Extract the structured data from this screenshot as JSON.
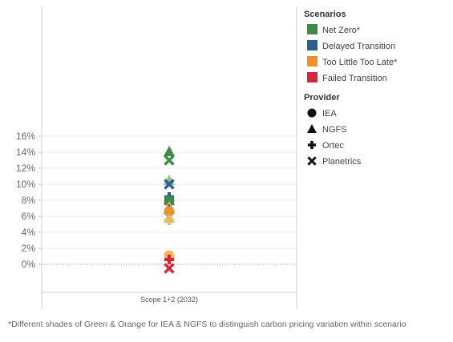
{
  "footnote": "*Different shades of Green & Orange for IEA & NGFS to distinguish carbon pricing variation within scenario",
  "chart_data": {
    "type": "scatter",
    "categories": [
      "Scope 1+2 (2032)"
    ],
    "ylim": [
      -0.03,
      0.16
    ],
    "yticks": [
      {
        "value": 0.16,
        "label": "16%"
      },
      {
        "value": 0.14,
        "label": "14%"
      },
      {
        "value": 0.12,
        "label": "12%"
      },
      {
        "value": 0.1,
        "label": "10%"
      },
      {
        "value": 0.08,
        "label": "8%"
      },
      {
        "value": 0.06,
        "label": "6%"
      },
      {
        "value": 0.04,
        "label": "4%"
      },
      {
        "value": 0.02,
        "label": "2%"
      },
      {
        "value": 0.0,
        "label": "0%"
      }
    ],
    "grid": true,
    "zero_line": "dotted",
    "legend_position": "right",
    "legends": [
      {
        "title": "Scenarios",
        "items": [
          {
            "label": "Net Zero*",
            "color": "#3d8b4a"
          },
          {
            "label": "Delayed Transition",
            "color": "#2f5d8c"
          },
          {
            "label": "Too Little Too Late*",
            "color": "#f28e2b"
          },
          {
            "label": "Failed Transition",
            "color": "#d6283a"
          }
        ]
      },
      {
        "title": "Provider",
        "items": [
          {
            "label": "IEA",
            "shape": "circle"
          },
          {
            "label": "NGFS",
            "shape": "triangle"
          },
          {
            "label": "Ortec",
            "shape": "plus"
          },
          {
            "label": "Planetrics",
            "shape": "cross"
          }
        ]
      }
    ],
    "points": [
      {
        "scenario": "Net Zero*",
        "provider": "NGFS",
        "value": 0.141,
        "color": "#3d8b4a"
      },
      {
        "scenario": "Net Zero*",
        "provider": "Planetrics",
        "value": 0.13,
        "color": "#3d8b4a"
      },
      {
        "scenario": "Net Zero*",
        "provider": "NGFS",
        "value": 0.105,
        "color": "#8cc57b"
      },
      {
        "scenario": "Delayed Transition",
        "provider": "Planetrics",
        "value": 0.1,
        "color": "#2f5d8c"
      },
      {
        "scenario": "Delayed Transition",
        "provider": "Ortec",
        "value": 0.084,
        "color": "#2f5d8c"
      },
      {
        "scenario": "Net Zero*",
        "provider": "NGFS",
        "value": 0.08,
        "color": "#3d8b4a"
      },
      {
        "scenario": "Net Zero*",
        "provider": "IEA",
        "value": 0.079,
        "color": "#3d8b4a"
      },
      {
        "scenario": "Too Little Too Late*",
        "provider": "NGFS",
        "value": 0.072,
        "color": "#f8b862"
      },
      {
        "scenario": "Delayed Transition",
        "provider": "NGFS",
        "value": 0.069,
        "color": "#2f5d8c"
      },
      {
        "scenario": "Too Little Too Late*",
        "provider": "IEA",
        "value": 0.066,
        "color": "#f28e2b"
      },
      {
        "scenario": "Net Zero*",
        "provider": "NGFS",
        "value": 0.058,
        "color": "#8cc57b"
      },
      {
        "scenario": "Too Little Too Late*",
        "provider": "Ortec",
        "value": 0.055,
        "color": "#f8b862"
      },
      {
        "scenario": "Too Little Too Late*",
        "provider": "IEA",
        "value": 0.011,
        "color": "#f8b862"
      },
      {
        "scenario": "Failed Transition",
        "provider": "Ortec",
        "value": 0.006,
        "color": "#d6283a"
      },
      {
        "scenario": "Failed Transition",
        "provider": "Planetrics",
        "value": -0.005,
        "color": "#d6283a"
      }
    ]
  }
}
